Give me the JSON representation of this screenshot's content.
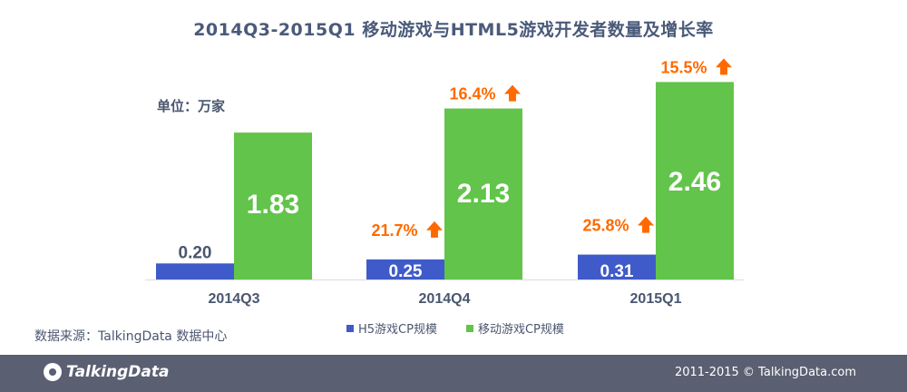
{
  "title": "2014Q3-2015Q1 移动游戏与HTML5游戏开发者数量及增长率",
  "unit_label": "单位：万家",
  "source_label": "数据来源：TalkingData 数据中心",
  "footer": {
    "logo_text": "TalkingData",
    "copyright": "2011-2015 © TalkingData.com"
  },
  "colors": {
    "h5": "#3f5bc9",
    "mobile": "#62c44a",
    "growth": "#ff6a00",
    "label_dark": "#4a5670"
  },
  "chart_data": {
    "type": "bar",
    "categories": [
      "2014Q3",
      "2014Q4",
      "2015Q1"
    ],
    "series": [
      {
        "name": "H5游戏CP规模",
        "values": [
          0.2,
          0.25,
          0.31
        ],
        "labels": [
          "0.20",
          "0.25",
          "0.31"
        ],
        "growth": [
          "",
          "21.7%",
          "25.8%"
        ]
      },
      {
        "name": "移动游戏CP规模",
        "values": [
          1.83,
          2.13,
          2.46
        ],
        "labels": [
          "1.83",
          "2.13",
          "2.46"
        ],
        "growth": [
          "",
          "16.4%",
          "15.5%"
        ]
      }
    ],
    "ylim": [
      0,
      2.6
    ],
    "grid": false,
    "legend_position": "bottom"
  }
}
